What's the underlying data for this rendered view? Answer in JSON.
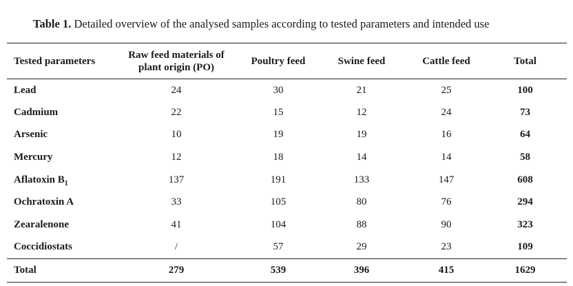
{
  "caption": {
    "label": "Table 1.",
    "text": "Detailed overview of the analysed samples according to tested parameters and intended use"
  },
  "headers": {
    "parameter": "Tested parameters",
    "po_line1": "Raw feed materials of",
    "po_line2": "plant origin (PO)",
    "poultry": "Poultry feed",
    "swine": "Swine feed",
    "cattle": "Cattle feed",
    "total": "Total"
  },
  "rows": [
    {
      "name": "Lead",
      "po": "24",
      "poultry": "30",
      "swine": "21",
      "cattle": "25",
      "total": "100"
    },
    {
      "name": "Cadmium",
      "po": "22",
      "poultry": "15",
      "swine": "12",
      "cattle": "24",
      "total": "73"
    },
    {
      "name": "Arsenic",
      "po": "10",
      "poultry": "19",
      "swine": "19",
      "cattle": "16",
      "total": "64"
    },
    {
      "name": "Mercury",
      "po": "12",
      "poultry": "18",
      "swine": "14",
      "cattle": "14",
      "total": "58"
    },
    {
      "name": "Aflatoxin B",
      "sub": "1",
      "po": "137",
      "poultry": "191",
      "swine": "133",
      "cattle": "147",
      "total": "608"
    },
    {
      "name": "Ochratoxin A",
      "po": "33",
      "poultry": "105",
      "swine": "80",
      "cattle": "76",
      "total": "294"
    },
    {
      "name": "Zearalenone",
      "po": "41",
      "poultry": "104",
      "swine": "88",
      "cattle": "90",
      "total": "323"
    },
    {
      "name": "Coccidiostats",
      "po": "/",
      "poultry": "57",
      "swine": "29",
      "cattle": "23",
      "total": "109"
    }
  ],
  "totals": {
    "label": "Total",
    "po": "279",
    "poultry": "539",
    "swine": "396",
    "cattle": "415",
    "total": "1629"
  }
}
